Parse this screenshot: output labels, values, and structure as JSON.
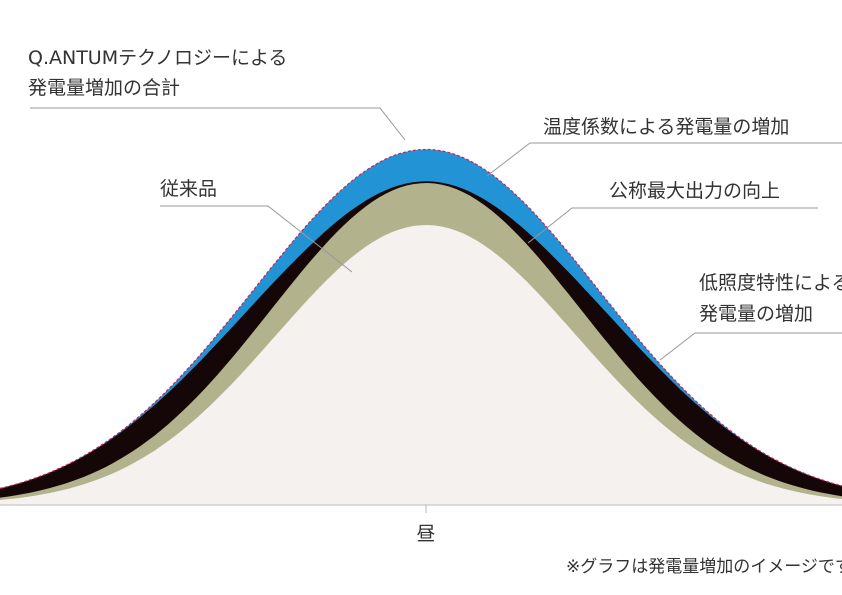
{
  "chart_data": {
    "type": "area",
    "title": "",
    "xlabel": "",
    "ylabel": "",
    "x_tick_labels": [
      "昼"
    ],
    "series": [
      {
        "name": "従来品",
        "peak": 1.0,
        "color": "#f4f1ee"
      },
      {
        "name": "公称最大出力の向上",
        "peak": 1.15,
        "color": "#b2b28c"
      },
      {
        "name": "低照度特性による発電量の増加",
        "peak": 1.27,
        "color": "#150707"
      },
      {
        "name": "温度係数による発電量の増加",
        "peak": 1.27,
        "color": "#2293d4"
      }
    ],
    "total": {
      "name": "Q.ANTUMテクノロジーによる発電量増加の合計",
      "color": "#c8235a"
    },
    "labels": {
      "total_line1": "Q.ANTUMテクノロジーによる",
      "total_line2": "発電量増加の合計",
      "conventional": "従来品",
      "temperature": "温度係数による発電量の増加",
      "nominal": "公称最大出力の向上",
      "lowlight_line1": "低照度特性による",
      "lowlight_line2": "発電量の増加"
    },
    "footnote": "※グラフは発電量増加のイメージです"
  }
}
